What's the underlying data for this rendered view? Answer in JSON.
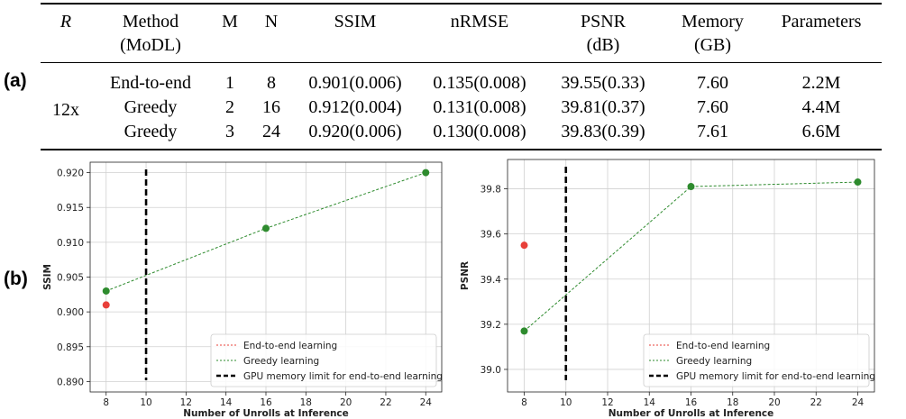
{
  "panel_labels": {
    "a": "(a)",
    "b": "(b)"
  },
  "table": {
    "headers": [
      {
        "line1": "R",
        "line2": ""
      },
      {
        "line1": "Method",
        "line2": "(MoDL)"
      },
      {
        "line1": "M",
        "line2": ""
      },
      {
        "line1": "N",
        "line2": ""
      },
      {
        "line1": "SSIM",
        "line2": ""
      },
      {
        "line1": "nRMSE",
        "line2": ""
      },
      {
        "line1": "PSNR",
        "line2": "(dB)"
      },
      {
        "line1": "Memory",
        "line2": "(GB)"
      },
      {
        "line1": "Parameters",
        "line2": ""
      }
    ],
    "r_value": "12x",
    "rows": [
      {
        "method": "End-to-end",
        "m": "1",
        "n": "8",
        "ssim": "0.901(0.006)",
        "nrmse": "0.135(0.008)",
        "psnr": "39.55(0.33)",
        "memory": "7.60",
        "params": "2.2M"
      },
      {
        "method": "Greedy",
        "m": "2",
        "n": "16",
        "ssim": "0.912(0.004)",
        "nrmse": "0.131(0.008)",
        "psnr": "39.81(0.37)",
        "memory": "7.60",
        "params": "4.4M"
      },
      {
        "method": "Greedy",
        "m": "3",
        "n": "24",
        "ssim": "0.920(0.006)",
        "nrmse": "0.130(0.008)",
        "psnr": "39.83(0.39)",
        "memory": "7.61",
        "params": "6.6M"
      }
    ]
  },
  "chart_data": [
    {
      "type": "line",
      "title": "",
      "xlabel": "Number of Unrolls at Inference",
      "ylabel": "SSIM",
      "xlim": [
        7.2,
        24.8
      ],
      "ylim": [
        0.8885,
        0.9215
      ],
      "xticks": [
        8,
        10,
        12,
        14,
        16,
        18,
        20,
        22,
        24
      ],
      "yticks": [
        0.89,
        0.895,
        0.9,
        0.905,
        0.91,
        0.915,
        0.92
      ],
      "ytick_labels": [
        "0.890",
        "0.895",
        "0.900",
        "0.905",
        "0.910",
        "0.915",
        "0.920"
      ],
      "grid": true,
      "legend_position": "bottom-right",
      "vline": {
        "x": 10,
        "label": "GPU memory limit for end-to-end learning",
        "color": "#000000"
      },
      "series": [
        {
          "name": "End-to-end learning",
          "color": "#e8403a",
          "x": [
            8
          ],
          "y": [
            0.901
          ]
        },
        {
          "name": "Greedy learning",
          "color": "#2e8b2e",
          "x": [
            8,
            16,
            24
          ],
          "y": [
            0.903,
            0.912,
            0.92
          ]
        }
      ]
    },
    {
      "type": "line",
      "title": "",
      "xlabel": "Number of Unrolls at Inference",
      "ylabel": "PSNR",
      "xlim": [
        7.2,
        24.8
      ],
      "ylim": [
        38.9,
        39.93
      ],
      "xticks": [
        8,
        10,
        12,
        14,
        16,
        18,
        20,
        22,
        24
      ],
      "yticks": [
        39.0,
        39.2,
        39.4,
        39.6,
        39.8
      ],
      "ytick_labels": [
        "39.0",
        "39.2",
        "39.4",
        "39.6",
        "39.8"
      ],
      "grid": true,
      "legend_position": "bottom-right",
      "vline": {
        "x": 10,
        "label": "GPU memory limit for end-to-end learning",
        "color": "#000000"
      },
      "series": [
        {
          "name": "End-to-end learning",
          "color": "#e8403a",
          "x": [
            8
          ],
          "y": [
            39.55
          ]
        },
        {
          "name": "Greedy learning",
          "color": "#2e8b2e",
          "x": [
            8,
            16,
            24
          ],
          "y": [
            39.17,
            39.81,
            39.83
          ]
        }
      ]
    }
  ]
}
